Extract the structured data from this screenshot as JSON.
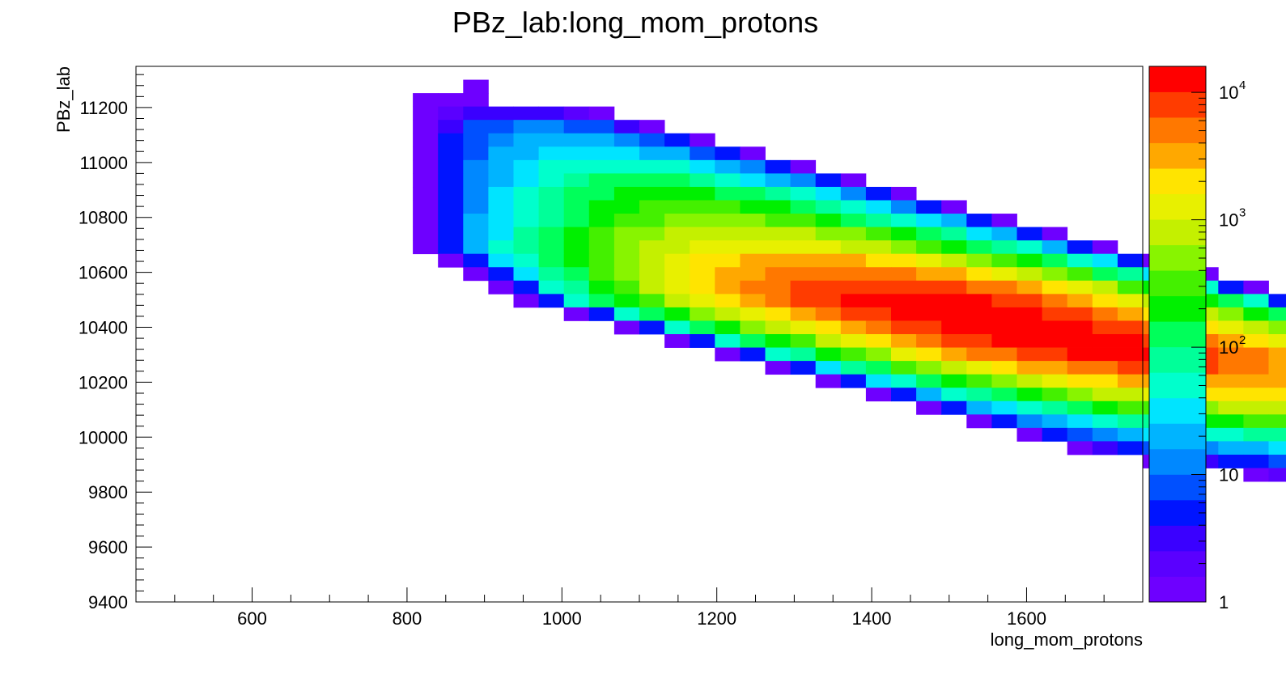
{
  "chart_data": {
    "type": "heatmap",
    "title": "PBz_lab:long_mom_protons",
    "xlabel": "long_mom_protons",
    "ylabel": "PBz_lab",
    "xlim": [
      450,
      1750
    ],
    "ylim": [
      9400,
      11350
    ],
    "x_ticks": [
      600,
      800,
      1000,
      1200,
      1400,
      1600
    ],
    "y_ticks": [
      9400,
      9600,
      9800,
      10000,
      10200,
      10400,
      10600,
      10800,
      11000,
      11200
    ],
    "x_bin_width": 32.5,
    "y_bin_width": 48.75,
    "x_bin_start": 450,
    "y_bin_start": 9400,
    "color_scale": "log",
    "zlim": [
      1,
      16000
    ],
    "z_ticks": [
      {
        "base": "10",
        "exp": "4",
        "value": 10000
      },
      {
        "base": "10",
        "exp": "3",
        "value": 1000
      },
      {
        "base": "10",
        "exp": "2",
        "value": 100
      },
      {
        "base": "10",
        "exp": "",
        "value": 10
      },
      {
        "base": "1",
        "exp": "",
        "value": 1
      }
    ],
    "palette": [
      "#6e00ff",
      "#5a00ff",
      "#3a00ff",
      "#0014ff",
      "#0050ff",
      "#0088ff",
      "#00b4ff",
      "#00e4ff",
      "#00ffcc",
      "#00ff99",
      "#00ff5a",
      "#00f000",
      "#44f000",
      "#88f400",
      "#c4f000",
      "#e8f000",
      "#ffe400",
      "#ffa800",
      "#ff7800",
      "#ff3c00",
      "#ff0000"
    ],
    "bands": [
      {
        "iy": 38,
        "x0": 13,
        "x1": 13,
        "z": 1
      },
      {
        "iy": 37,
        "x0": 11,
        "x1": 13,
        "z": 1
      },
      {
        "iy": 36,
        "x0": 11,
        "x1": 18,
        "z": 4
      },
      {
        "iy": 35,
        "x0": 11,
        "x1": 20,
        "z": 12
      },
      {
        "iy": 34,
        "x0": 11,
        "x1": 22,
        "z": 25
      },
      {
        "iy": 33,
        "x0": 11,
        "x1": 24,
        "z": 40
      },
      {
        "iy": 32,
        "x0": 11,
        "x1": 26,
        "z": 60
      },
      {
        "iy": 31,
        "x0": 11,
        "x1": 28,
        "z": 120
      },
      {
        "iy": 30,
        "x0": 11,
        "x1": 30,
        "z": 200
      },
      {
        "iy": 29,
        "x0": 11,
        "x1": 32,
        "z": 300
      },
      {
        "iy": 28,
        "x0": 11,
        "x1": 34,
        "z": 500
      },
      {
        "iy": 27,
        "x0": 11,
        "x1": 36,
        "z": 900
      },
      {
        "iy": 26,
        "x0": 11,
        "x1": 38,
        "z": 1500
      },
      {
        "iy": 25,
        "x0": 12,
        "x1": 40,
        "z": 3000
      },
      {
        "iy": 24,
        "x0": 13,
        "x1": 42,
        "z": 6000
      },
      {
        "iy": 23,
        "x0": 14,
        "x1": 44,
        "z": 10000
      },
      {
        "iy": 22,
        "x0": 15,
        "x1": 46,
        "z": 14000
      },
      {
        "iy": 21,
        "x0": 17,
        "x1": 48,
        "z": 15000
      },
      {
        "iy": 20,
        "x0": 19,
        "x1": 50,
        "z": 15000
      },
      {
        "iy": 19,
        "x0": 21,
        "x1": 52,
        "z": 14000
      },
      {
        "iy": 18,
        "x0": 23,
        "x1": 54,
        "z": 11000
      },
      {
        "iy": 17,
        "x0": 25,
        "x1": 56,
        "z": 7000
      },
      {
        "iy": 16,
        "x0": 27,
        "x1": 58,
        "z": 4000
      },
      {
        "iy": 15,
        "x0": 29,
        "x1": 60,
        "z": 2000
      },
      {
        "iy": 14,
        "x0": 31,
        "x1": 61,
        "z": 900
      },
      {
        "iy": 13,
        "x0": 33,
        "x1": 62,
        "z": 350
      },
      {
        "iy": 12,
        "x0": 35,
        "x1": 62,
        "z": 120
      },
      {
        "iy": 11,
        "x0": 37,
        "x1": 62,
        "z": 40
      },
      {
        "iy": 10,
        "x0": 40,
        "x1": 62,
        "z": 12
      },
      {
        "iy": 9,
        "x0": 44,
        "x1": 61,
        "z": 5
      },
      {
        "iy": 8,
        "x0": 47,
        "x1": 60,
        "z": 2
      },
      {
        "iy": 7,
        "x0": 50,
        "x1": 55,
        "z": 1
      }
    ],
    "grid": false,
    "legend": "none"
  }
}
